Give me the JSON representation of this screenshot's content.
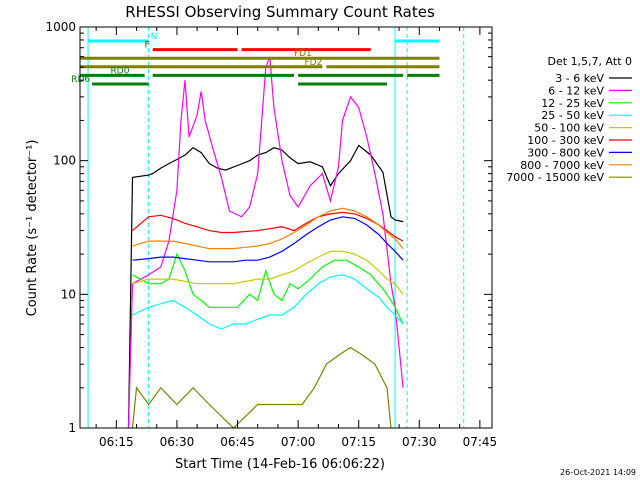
{
  "chart_data": {
    "type": "line",
    "title": "RHESSI Observing Summary Count Rates",
    "xlabel": "Start Time (14-Feb-16 06:06:22)",
    "ylabel": "Count Rate (s⁻¹ detector⁻¹)",
    "yscale": "log",
    "xlim": [
      "06:06",
      "07:48"
    ],
    "ylim": [
      1,
      1000
    ],
    "x_ticks": [
      "06:15",
      "06:30",
      "06:45",
      "07:00",
      "07:15",
      "07:30",
      "07:45"
    ],
    "y_ticks": [
      "1",
      "10",
      "100",
      "1000"
    ],
    "legend_header": "Det 1,5,7, Att 0",
    "legend_position": "right",
    "timestamp": "26-Oct-2021 14:09",
    "series": [
      {
        "name": "3 - 6 keV",
        "color": "#000000",
        "x": [
          "06:18",
          "06:19",
          "06:23",
          "06:24",
          "06:26",
          "06:28",
          "06:30",
          "06:32",
          "06:34",
          "06:36",
          "06:38",
          "06:40",
          "06:42",
          "06:45",
          "06:48",
          "06:50",
          "06:52",
          "06:54",
          "06:56",
          "06:58",
          "07:00",
          "07:03",
          "07:06",
          "07:08",
          "07:10",
          "07:13",
          "07:15",
          "07:18",
          "07:21",
          "07:23",
          "07:24",
          "07:26"
        ],
        "y": [
          1,
          75,
          78,
          80,
          88,
          95,
          102,
          110,
          125,
          115,
          95,
          88,
          85,
          92,
          100,
          110,
          115,
          125,
          120,
          105,
          95,
          98,
          90,
          65,
          80,
          100,
          130,
          110,
          82,
          38,
          36,
          35
        ]
      },
      {
        "name": "6 - 12 keV",
        "color": "#ff00ff",
        "x": [
          "06:18",
          "06:19",
          "06:23",
          "06:26",
          "06:28",
          "06:30",
          "06:31",
          "06:32",
          "06:33",
          "06:35",
          "06:36",
          "06:37",
          "06:39",
          "06:41",
          "06:43",
          "06:46",
          "06:48",
          "06:50",
          "06:52",
          "06:53",
          "06:54",
          "06:56",
          "06:58",
          "07:00",
          "07:03",
          "07:06",
          "07:08",
          "07:10",
          "07:11",
          "07:13",
          "07:15",
          "07:17",
          "07:19",
          "07:21",
          "07:23",
          "07:24",
          "07:26"
        ],
        "y": [
          1,
          12,
          14,
          16,
          25,
          60,
          200,
          400,
          150,
          220,
          330,
          200,
          120,
          75,
          42,
          38,
          45,
          80,
          500,
          600,
          250,
          100,
          55,
          45,
          65,
          80,
          50,
          90,
          200,
          300,
          250,
          150,
          80,
          40,
          12,
          8,
          2
        ]
      },
      {
        "name": "12 - 25 keV",
        "color": "#00ff00",
        "x": [
          "06:19",
          "06:23",
          "06:26",
          "06:28",
          "06:30",
          "06:32",
          "06:34",
          "06:36",
          "06:38",
          "06:40",
          "06:42",
          "06:45",
          "06:48",
          "06:50",
          "06:52",
          "06:54",
          "06:56",
          "06:58",
          "07:00",
          "07:03",
          "07:06",
          "07:09",
          "07:12",
          "07:15",
          "07:18",
          "07:21",
          "07:23",
          "07:24",
          "07:26"
        ],
        "y": [
          14,
          12,
          12,
          13,
          20,
          15,
          10,
          9,
          8,
          8,
          8,
          8,
          10,
          9,
          15,
          10,
          9,
          12,
          11,
          13,
          16,
          18,
          18,
          16,
          14,
          11,
          9,
          8,
          6
        ]
      },
      {
        "name": "25 - 50 keV",
        "color": "#00ffff",
        "x": [
          "06:19",
          "06:23",
          "06:26",
          "06:29",
          "06:32",
          "06:35",
          "06:38",
          "06:41",
          "06:44",
          "06:47",
          "06:50",
          "06:53",
          "06:56",
          "06:59",
          "07:02",
          "07:05",
          "07:08",
          "07:11",
          "07:14",
          "07:17",
          "07:20",
          "07:22",
          "07:24",
          "07:26"
        ],
        "y": [
          7,
          8,
          8.5,
          9,
          8,
          7,
          6,
          5.5,
          6,
          6,
          6.5,
          7,
          7,
          8,
          10,
          12,
          13.5,
          14,
          13,
          11,
          9.5,
          8,
          7,
          6
        ]
      },
      {
        "name": "50 - 100 keV",
        "color": "#c8c800",
        "x": [
          "06:19",
          "06:23",
          "06:26",
          "06:29",
          "06:32",
          "06:35",
          "06:38",
          "06:41",
          "06:44",
          "06:47",
          "06:50",
          "06:53",
          "06:56",
          "06:59",
          "07:02",
          "07:05",
          "07:08",
          "07:11",
          "07:14",
          "07:17",
          "07:20",
          "07:22",
          "07:24",
          "07:26"
        ],
        "y": [
          12,
          13,
          13,
          13,
          12.5,
          12,
          12,
          12,
          12,
          12.5,
          13,
          13,
          14,
          15,
          17,
          19,
          21,
          21,
          20,
          18,
          15,
          13,
          12,
          10
        ]
      },
      {
        "name": "100 - 300 keV",
        "color": "#ff0000",
        "x": [
          "06:19",
          "06:23",
          "06:26",
          "06:29",
          "06:32",
          "06:35",
          "06:38",
          "06:41",
          "06:44",
          "06:47",
          "06:50",
          "06:53",
          "06:56",
          "06:59",
          "07:02",
          "07:05",
          "07:08",
          "07:11",
          "07:14",
          "07:17",
          "07:20",
          "07:22",
          "07:24",
          "07:26"
        ],
        "y": [
          30,
          38,
          39,
          37,
          34,
          32,
          30,
          29,
          29,
          29.5,
          30,
          31,
          32,
          30,
          34,
          38,
          40,
          41,
          40,
          37,
          33,
          30,
          27,
          25
        ]
      },
      {
        "name": "300 - 800 keV",
        "color": "#0000ff",
        "x": [
          "06:19",
          "06:23",
          "06:26",
          "06:29",
          "06:32",
          "06:35",
          "06:38",
          "06:41",
          "06:44",
          "06:47",
          "06:50",
          "06:53",
          "06:56",
          "06:59",
          "07:02",
          "07:05",
          "07:08",
          "07:11",
          "07:14",
          "07:17",
          "07:20",
          "07:22",
          "07:24",
          "07:26"
        ],
        "y": [
          18,
          18.5,
          19,
          19,
          18.5,
          18,
          17.5,
          17.5,
          17.5,
          18,
          18,
          19,
          21,
          24,
          28,
          32,
          36,
          38,
          37,
          33,
          28,
          24,
          21,
          18
        ]
      },
      {
        "name": "800 - 7000 keV",
        "color": "#ff8000",
        "x": [
          "06:19",
          "06:23",
          "06:26",
          "06:29",
          "06:32",
          "06:35",
          "06:38",
          "06:41",
          "06:44",
          "06:47",
          "06:50",
          "06:53",
          "06:56",
          "06:59",
          "07:02",
          "07:05",
          "07:08",
          "07:11",
          "07:14",
          "07:17",
          "07:20",
          "07:22",
          "07:24",
          "07:26"
        ],
        "y": [
          23,
          25,
          25,
          25,
          24,
          23,
          22,
          22,
          22,
          22.5,
          23,
          24,
          26,
          29,
          33,
          38,
          42,
          44,
          42,
          38,
          33,
          29,
          26,
          22
        ]
      },
      {
        "name": "7000 - 15000 keV",
        "color": "#808000",
        "x": [
          "06:19",
          "06:20",
          "06:23",
          "06:26",
          "06:30",
          "06:34",
          "06:38",
          "06:44",
          "06:50",
          "06:56",
          "07:01",
          "07:04",
          "07:07",
          "07:10",
          "07:13",
          "07:16",
          "07:19",
          "07:22",
          "07:23"
        ],
        "y": [
          1,
          2,
          1.5,
          2,
          1.5,
          2,
          1.5,
          1,
          1.5,
          1.5,
          1.5,
          2,
          3,
          3.5,
          4,
          3.5,
          3,
          2,
          1
        ]
      }
    ],
    "state_bars": [
      {
        "label": "N",
        "color": "#00ffff",
        "level": 1,
        "segments": [
          [
            "06:08",
            "06:23"
          ],
          [
            "07:24",
            "07:35"
          ]
        ]
      },
      {
        "label": "F",
        "color": "#ff0000",
        "level": 2,
        "segments": [
          [
            "06:24",
            "06:45"
          ],
          [
            "06:46",
            "07:18"
          ]
        ]
      },
      {
        "label": "FD1",
        "color": "#808000",
        "level": 3,
        "segments": [
          [
            "06:06",
            "07:35"
          ]
        ]
      },
      {
        "label": "FD2",
        "color": "#808000",
        "level": 4,
        "segments": [
          [
            "06:06",
            "07:06"
          ],
          [
            "07:07",
            "07:35"
          ]
        ]
      },
      {
        "label": "RD0",
        "color": "#008000",
        "level": 5,
        "segments": [
          [
            "06:06",
            "06:22"
          ],
          [
            "06:24",
            "06:59"
          ],
          [
            "07:00",
            "07:26"
          ],
          [
            "07:27",
            "07:35"
          ]
        ]
      },
      {
        "label": "RD6",
        "color": "#008000",
        "level": 6,
        "segments": [
          [
            "06:09",
            "06:23"
          ],
          [
            "07:00",
            "07:22"
          ]
        ]
      }
    ],
    "event_markers": [
      {
        "color": "#00ffff",
        "style": "solid",
        "x": "06:08"
      },
      {
        "color": "#00ffff",
        "style": "dashed",
        "x": "06:23"
      },
      {
        "color": "#00ffff",
        "style": "solid",
        "x": "07:24"
      },
      {
        "color": "#00ffff",
        "style": "dashed",
        "x": "07:27"
      },
      {
        "color": "#00ffff",
        "style": "dashed",
        "x": "07:41"
      }
    ]
  }
}
